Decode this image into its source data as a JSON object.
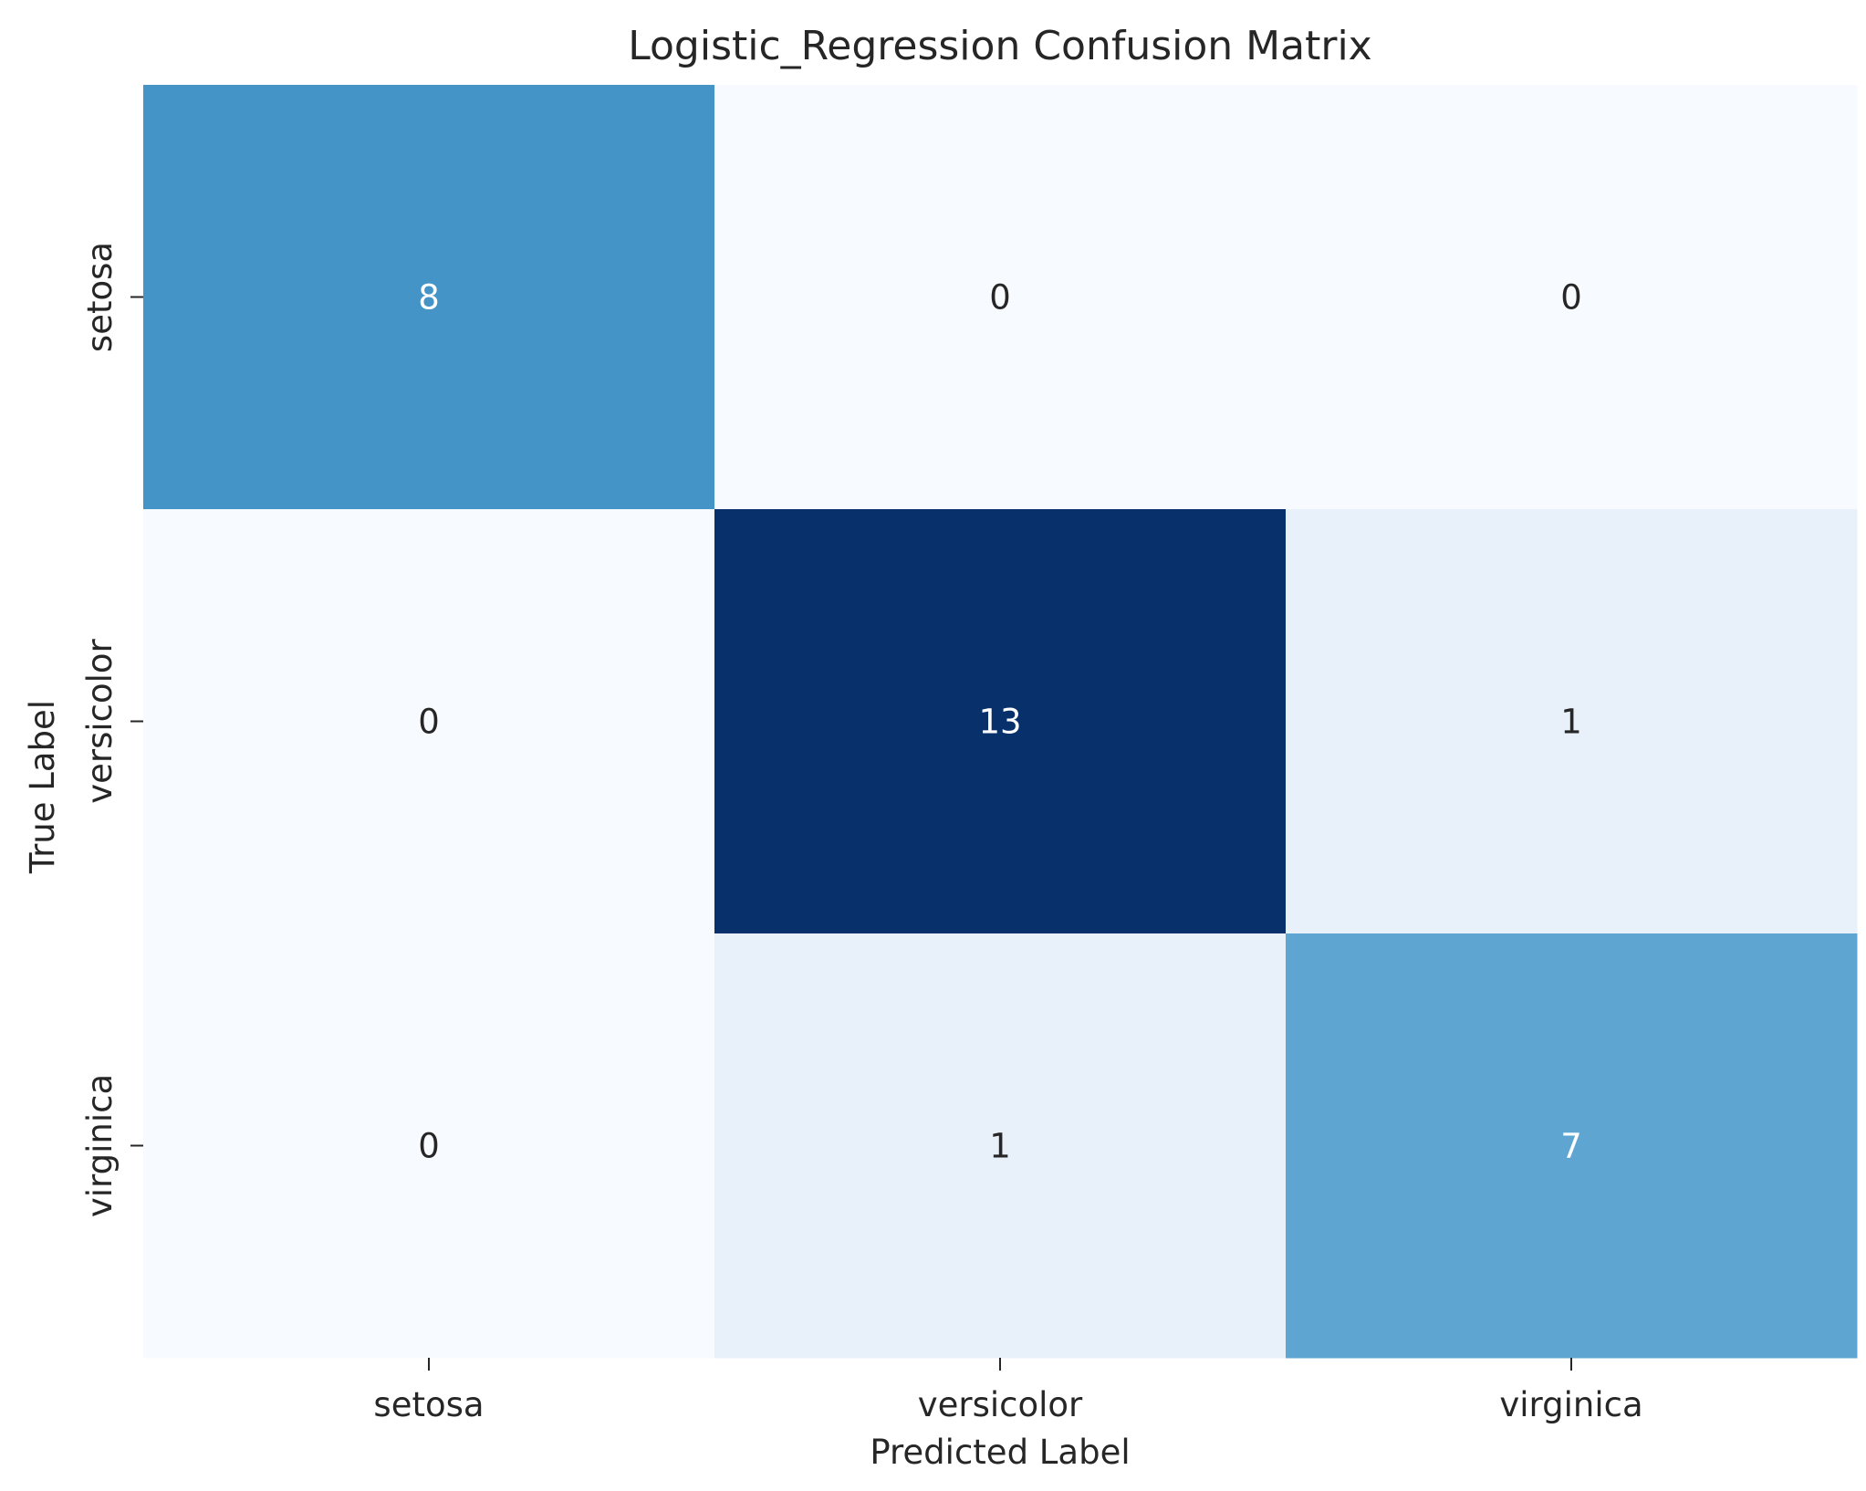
{
  "chart_data": {
    "type": "heatmap",
    "title": "Logistic_Regression Confusion Matrix",
    "xlabel": "Predicted Label",
    "ylabel": "True Label",
    "x_categories": [
      "setosa",
      "versicolor",
      "virginica"
    ],
    "y_categories": [
      "setosa",
      "versicolor",
      "virginica"
    ],
    "values": [
      [
        8,
        0,
        0
      ],
      [
        0,
        13,
        1
      ],
      [
        0,
        1,
        7
      ]
    ],
    "colormap": "Blues",
    "colorbar": false,
    "value_range": [
      0,
      13
    ],
    "cell_annotations": true
  }
}
